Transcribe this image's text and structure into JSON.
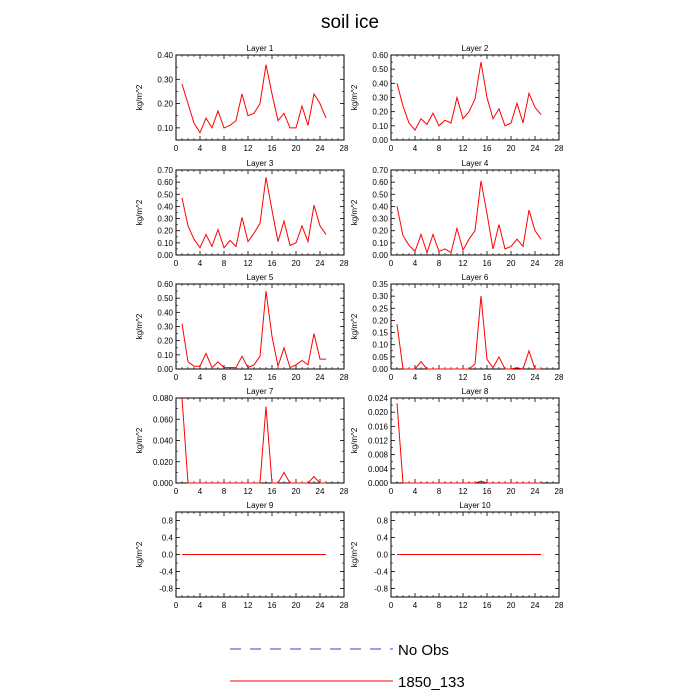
{
  "title": "soil ice",
  "legend": [
    {
      "label": "No Obs",
      "color": "#3b3bd6",
      "style": "dashed"
    },
    {
      "label": "1850_133",
      "color": "#ff0000",
      "style": "solid"
    }
  ],
  "chart_data": [
    {
      "type": "line",
      "title": "Layer 1",
      "ylabel": "kg/m^2",
      "xlim": [
        0,
        28
      ],
      "ylim": [
        0.05,
        0.4
      ],
      "xticks": [
        0,
        4,
        8,
        12,
        16,
        20,
        24,
        28
      ],
      "yticks": [
        0.1,
        0.2,
        0.3,
        0.4
      ],
      "ytick_labels": [
        "0.10",
        "0.20",
        "0.30",
        "0.40"
      ],
      "x": [
        1,
        2,
        3,
        4,
        5,
        6,
        7,
        8,
        9,
        10,
        11,
        12,
        13,
        14,
        15,
        16,
        17,
        18,
        19,
        20,
        21,
        22,
        23,
        24,
        25
      ],
      "series": [
        {
          "name": "1850_133",
          "values": [
            0.28,
            0.2,
            0.12,
            0.08,
            0.14,
            0.1,
            0.17,
            0.1,
            0.11,
            0.13,
            0.24,
            0.15,
            0.16,
            0.2,
            0.36,
            0.24,
            0.13,
            0.16,
            0.1,
            0.1,
            0.19,
            0.11,
            0.24,
            0.2,
            0.14
          ]
        }
      ]
    },
    {
      "type": "line",
      "title": "Layer 2",
      "ylabel": "kg/m^2",
      "xlim": [
        0,
        28
      ],
      "ylim": [
        0,
        0.6
      ],
      "xticks": [
        0,
        4,
        8,
        12,
        16,
        20,
        24,
        28
      ],
      "yticks": [
        0,
        0.1,
        0.2,
        0.3,
        0.4,
        0.5,
        0.6
      ],
      "ytick_labels": [
        "0.00",
        "0.10",
        "0.20",
        "0.30",
        "0.40",
        "0.50",
        "0.60"
      ],
      "x": [
        1,
        2,
        3,
        4,
        5,
        6,
        7,
        8,
        9,
        10,
        11,
        12,
        13,
        14,
        15,
        16,
        17,
        18,
        19,
        20,
        21,
        22,
        23,
        24,
        25
      ],
      "series": [
        {
          "name": "1850_133",
          "values": [
            0.4,
            0.24,
            0.12,
            0.07,
            0.15,
            0.11,
            0.19,
            0.1,
            0.14,
            0.12,
            0.3,
            0.15,
            0.2,
            0.29,
            0.55,
            0.3,
            0.15,
            0.22,
            0.1,
            0.12,
            0.26,
            0.12,
            0.33,
            0.23,
            0.18
          ]
        }
      ]
    },
    {
      "type": "line",
      "title": "Layer 3",
      "ylabel": "kg/m^2",
      "xlim": [
        0,
        28
      ],
      "ylim": [
        0,
        0.7
      ],
      "xticks": [
        0,
        4,
        8,
        12,
        16,
        20,
        24,
        28
      ],
      "yticks": [
        0,
        0.1,
        0.2,
        0.3,
        0.4,
        0.5,
        0.6,
        0.7
      ],
      "ytick_labels": [
        "0.00",
        "0.10",
        "0.20",
        "0.30",
        "0.40",
        "0.50",
        "0.60",
        "0.70"
      ],
      "x": [
        1,
        2,
        3,
        4,
        5,
        6,
        7,
        8,
        9,
        10,
        11,
        12,
        13,
        14,
        15,
        16,
        17,
        18,
        19,
        20,
        21,
        22,
        23,
        24,
        25
      ],
      "series": [
        {
          "name": "1850_133",
          "values": [
            0.47,
            0.24,
            0.13,
            0.06,
            0.17,
            0.07,
            0.21,
            0.06,
            0.12,
            0.07,
            0.31,
            0.11,
            0.18,
            0.26,
            0.64,
            0.37,
            0.11,
            0.28,
            0.08,
            0.1,
            0.24,
            0.11,
            0.41,
            0.24,
            0.17
          ]
        }
      ]
    },
    {
      "type": "line",
      "title": "Layer 4",
      "ylabel": "kg/m^2",
      "xlim": [
        0,
        28
      ],
      "ylim": [
        0,
        0.7
      ],
      "xticks": [
        0,
        4,
        8,
        12,
        16,
        20,
        24,
        28
      ],
      "yticks": [
        0,
        0.1,
        0.2,
        0.3,
        0.4,
        0.5,
        0.6,
        0.7
      ],
      "ytick_labels": [
        "0.00",
        "0.10",
        "0.20",
        "0.30",
        "0.40",
        "0.50",
        "0.60",
        "0.70"
      ],
      "x": [
        1,
        2,
        3,
        4,
        5,
        6,
        7,
        8,
        9,
        10,
        11,
        12,
        13,
        14,
        15,
        16,
        17,
        18,
        19,
        20,
        21,
        22,
        23,
        24,
        25
      ],
      "series": [
        {
          "name": "1850_133",
          "values": [
            0.4,
            0.16,
            0.08,
            0.03,
            0.17,
            0.02,
            0.17,
            0.03,
            0.05,
            0.02,
            0.22,
            0.04,
            0.13,
            0.2,
            0.61,
            0.34,
            0.05,
            0.25,
            0.05,
            0.07,
            0.13,
            0.07,
            0.37,
            0.2,
            0.13
          ]
        }
      ]
    },
    {
      "type": "line",
      "title": "Layer 5",
      "ylabel": "kg/m^2",
      "xlim": [
        0,
        28
      ],
      "ylim": [
        0,
        0.6
      ],
      "xticks": [
        0,
        4,
        8,
        12,
        16,
        20,
        24,
        28
      ],
      "yticks": [
        0,
        0.1,
        0.2,
        0.3,
        0.4,
        0.5,
        0.6
      ],
      "ytick_labels": [
        "0.00",
        "0.10",
        "0.20",
        "0.30",
        "0.40",
        "0.50",
        "0.60"
      ],
      "x": [
        1,
        2,
        3,
        4,
        5,
        6,
        7,
        8,
        9,
        10,
        11,
        12,
        13,
        14,
        15,
        16,
        17,
        18,
        19,
        20,
        21,
        22,
        23,
        24,
        25
      ],
      "series": [
        {
          "name": "1850_133",
          "values": [
            0.32,
            0.05,
            0.02,
            0.02,
            0.11,
            0.01,
            0.05,
            0.01,
            0.01,
            0.01,
            0.09,
            0.01,
            0.03,
            0.09,
            0.55,
            0.23,
            0.02,
            0.15,
            0.01,
            0.03,
            0.06,
            0.03,
            0.25,
            0.07,
            0.07
          ]
        }
      ]
    },
    {
      "type": "line",
      "title": "Layer 6",
      "ylabel": "kg/m^2",
      "xlim": [
        0,
        28
      ],
      "ylim": [
        0,
        0.35
      ],
      "xticks": [
        0,
        4,
        8,
        12,
        16,
        20,
        24,
        28
      ],
      "yticks": [
        0,
        0.05,
        0.1,
        0.15,
        0.2,
        0.25,
        0.3,
        0.35
      ],
      "ytick_labels": [
        "0.00",
        "0.05",
        "0.10",
        "0.15",
        "0.20",
        "0.25",
        "0.30",
        "0.35"
      ],
      "x": [
        1,
        2,
        3,
        4,
        5,
        6,
        7,
        8,
        9,
        10,
        11,
        12,
        13,
        14,
        15,
        16,
        17,
        18,
        19,
        20,
        21,
        22,
        23,
        24,
        25
      ],
      "series": [
        {
          "name": "1850_133",
          "values": [
            0.185,
            0,
            0,
            0,
            0.03,
            0,
            0,
            0,
            0,
            0,
            0,
            0,
            0,
            0.02,
            0.3,
            0.04,
            0.005,
            0.05,
            0,
            0,
            0.005,
            0,
            0.075,
            0,
            0
          ]
        }
      ]
    },
    {
      "type": "line",
      "title": "Layer 7",
      "ylabel": "kg/m^2",
      "xlim": [
        0,
        28
      ],
      "ylim": [
        0,
        0.08
      ],
      "xticks": [
        0,
        4,
        8,
        12,
        16,
        20,
        24,
        28
      ],
      "yticks": [
        0,
        0.02,
        0.04,
        0.06,
        0.08
      ],
      "ytick_labels": [
        "0.000",
        "0.020",
        "0.040",
        "0.060",
        "0.080"
      ],
      "x": [
        1,
        2,
        3,
        4,
        5,
        6,
        7,
        8,
        9,
        10,
        11,
        12,
        13,
        14,
        15,
        16,
        17,
        18,
        19,
        20,
        21,
        22,
        23,
        24,
        25
      ],
      "series": [
        {
          "name": "1850_133",
          "values": [
            0.08,
            0,
            0,
            0,
            0,
            0,
            0,
            0,
            0,
            0,
            0,
            0,
            0,
            0,
            0.072,
            0,
            0,
            0.01,
            0,
            0,
            0,
            0,
            0.006,
            0,
            0
          ]
        }
      ]
    },
    {
      "type": "line",
      "title": "Layer 8",
      "ylabel": "kg/m^2",
      "xlim": [
        0,
        28
      ],
      "ylim": [
        0,
        0.024
      ],
      "xticks": [
        0,
        4,
        8,
        12,
        16,
        20,
        24,
        28
      ],
      "yticks": [
        0,
        0.004,
        0.008,
        0.012,
        0.016,
        0.02,
        0.024
      ],
      "ytick_labels": [
        "0.000",
        "0.004",
        "0.008",
        "0.012",
        "0.016",
        "0.020",
        "0.024"
      ],
      "x": [
        1,
        2,
        3,
        4,
        5,
        6,
        7,
        8,
        9,
        10,
        11,
        12,
        13,
        14,
        15,
        16,
        17,
        18,
        19,
        20,
        21,
        22,
        23,
        24,
        25
      ],
      "series": [
        {
          "name": "1850_133",
          "values": [
            0.0225,
            0,
            0,
            0,
            0,
            0,
            0,
            0,
            0,
            0,
            0,
            0,
            0,
            0,
            0.0005,
            0,
            0,
            0,
            0,
            0,
            0,
            0,
            0,
            0,
            0
          ]
        }
      ]
    },
    {
      "type": "line",
      "title": "Layer 9",
      "ylabel": "kg/m^2",
      "xlim": [
        0,
        28
      ],
      "ylim": [
        -1,
        1
      ],
      "xticks": [
        0,
        4,
        8,
        12,
        16,
        20,
        24,
        28
      ],
      "yticks": [
        -0.8,
        -0.4,
        0,
        0.4,
        0.8
      ],
      "ytick_labels": [
        "-0.8",
        "-0.4",
        "0.0",
        "0.4",
        "0.8"
      ],
      "x": [
        1,
        2,
        3,
        4,
        5,
        6,
        7,
        8,
        9,
        10,
        11,
        12,
        13,
        14,
        15,
        16,
        17,
        18,
        19,
        20,
        21,
        22,
        23,
        24,
        25
      ],
      "series": [
        {
          "name": "1850_133",
          "values": [
            0,
            0,
            0,
            0,
            0,
            0,
            0,
            0,
            0,
            0,
            0,
            0,
            0,
            0,
            0,
            0,
            0,
            0,
            0,
            0,
            0,
            0,
            0,
            0,
            0
          ]
        }
      ]
    },
    {
      "type": "line",
      "title": "Layer 10",
      "ylabel": "kg/m^2",
      "xlim": [
        0,
        28
      ],
      "ylim": [
        -1,
        1
      ],
      "xticks": [
        0,
        4,
        8,
        12,
        16,
        20,
        24,
        28
      ],
      "yticks": [
        -0.8,
        -0.4,
        0,
        0.4,
        0.8
      ],
      "ytick_labels": [
        "-0.8",
        "-0.4",
        "0.0",
        "0.4",
        "0.8"
      ],
      "x": [
        1,
        2,
        3,
        4,
        5,
        6,
        7,
        8,
        9,
        10,
        11,
        12,
        13,
        14,
        15,
        16,
        17,
        18,
        19,
        20,
        21,
        22,
        23,
        24,
        25
      ],
      "series": [
        {
          "name": "1850_133",
          "values": [
            0,
            0,
            0,
            0,
            0,
            0,
            0,
            0,
            0,
            0,
            0,
            0,
            0,
            0,
            0,
            0,
            0,
            0,
            0,
            0,
            0,
            0,
            0,
            0,
            0
          ]
        }
      ]
    }
  ]
}
